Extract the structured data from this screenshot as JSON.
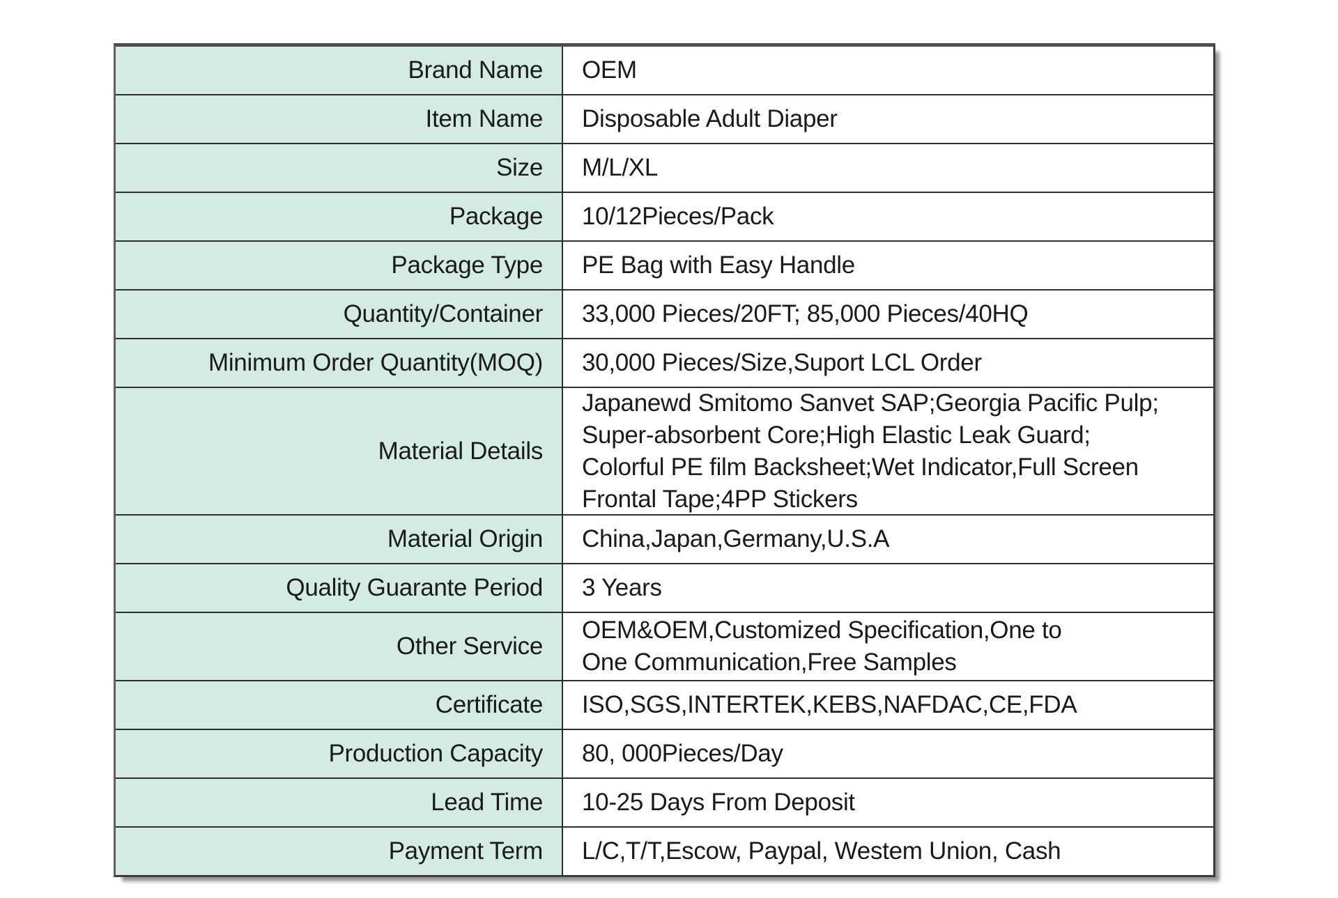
{
  "spec_table": {
    "columns": {
      "label_column": "attribute",
      "value_column": "value"
    },
    "colors": {
      "label_bg": "#d4ebe2",
      "value_bg": "#ffffff",
      "grid_line": "#2e2e2e",
      "text": "#1a1a1a"
    },
    "rows": [
      {
        "label": "Brand Name",
        "value": "OEM"
      },
      {
        "label": "Item Name",
        "value": "Disposable Adult Diaper"
      },
      {
        "label": "Size",
        "value": "M/L/XL"
      },
      {
        "label": "Package",
        "value": "10/12Pieces/Pack"
      },
      {
        "label": "Package Type",
        "value": "PE Bag with Easy Handle"
      },
      {
        "label": "Quantity/Container",
        "value": "33,000 Pieces/20FT; 85,000 Pieces/40HQ"
      },
      {
        "label": "Minimum Order Quantity(MOQ)",
        "value": "30,000 Pieces/Size,Suport LCL Order"
      },
      {
        "label": "Material Details",
        "value": "Japanewd Smitomo Sanvet SAP;Georgia Pacific Pulp;\nSuper-absorbent Core;High Elastic Leak Guard;\nColorful PE film Backsheet;Wet Indicator,Full Screen\nFrontal Tape;4PP Stickers"
      },
      {
        "label": "Material Origin",
        "value": "China,Japan,Germany,U.S.A"
      },
      {
        "label": "Quality Guarante Period",
        "value": "3 Years"
      },
      {
        "label": "Other Service",
        "value": "OEM&OEM,Customized Specification,One to\nOne Communication,Free Samples"
      },
      {
        "label": "Certificate",
        "value": "ISO,SGS,INTERTEK,KEBS,NAFDAC,CE,FDA"
      },
      {
        "label": "Production Capacity",
        "value": "80, 000Pieces/Day"
      },
      {
        "label": "Lead Time",
        "value": "10-25 Days From Deposit"
      },
      {
        "label": "Payment Term",
        "value": "L/C,T/T,Escow, Paypal, Westem Union, Cash"
      }
    ]
  }
}
